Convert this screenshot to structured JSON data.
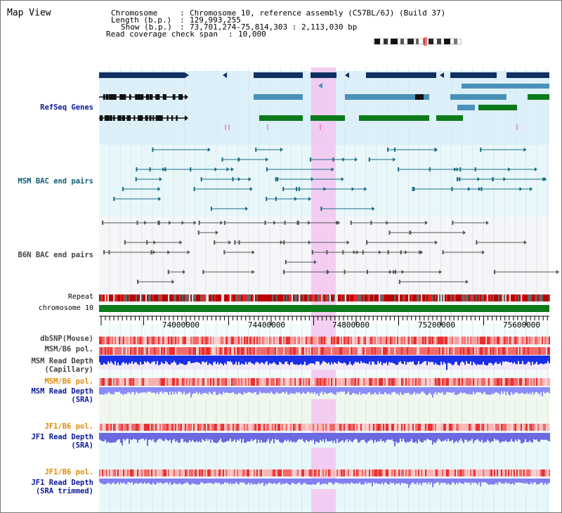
{
  "title": "Map View",
  "header": {
    "chromosome_label": "Chromosome",
    "chromosome_value": "Chromosome 10, reference assembly (C57BL/6J) (Build 37)",
    "length_label": "Length (b.p.)",
    "length_value": "129,993,255",
    "show_label": "Show (b.p.)",
    "show_value": "73,701,274-75,814,303 : 2,113,030 bp",
    "coverage_label": "Read coverage check span",
    "coverage_value": "10,000",
    "sep": ":"
  },
  "tracks": {
    "refseq": "RefSeq Genes",
    "msm_bac": "MSM BAC end pairs",
    "b6n_bac": "B6N BAC end pairs",
    "repeat": "Repeat",
    "chromosome": "chromosome 10",
    "dbsnp": "dbSNP(Mouse)",
    "msm_b6_pol_1": "MSM/B6 pol.",
    "msm_depth_cap_1": "MSM Read Depth",
    "msm_depth_cap_2": "(Capillary)",
    "msm_b6_pol_2": "MSM/B6 pol.",
    "msm_depth_sra_1": "MSM Read Depth",
    "msm_depth_sra_2": "(SRA)",
    "jf1_b6_pol_1": "JF1/B6 pol.",
    "jf1_depth_sra_1": "JF1 Read Depth",
    "jf1_depth_sra_2": "(SRA)",
    "jf1_b6_pol_2": "JF1/B6 pol.",
    "jf1_depth_trim_1": "JF1 Read Depth",
    "jf1_depth_trim_2": "(SRA trimmed)"
  },
  "axis": {
    "ticks": [
      "74000000",
      "74400000",
      "74800000",
      "75200000",
      "75600000"
    ],
    "tick_values": [
      74000000,
      74400000,
      74800000,
      75200000,
      75600000
    ],
    "range": [
      73701274,
      75814303
    ]
  },
  "colors": {
    "refseq_bg": "#dcf0fa",
    "msm_bg": "#e8f8fa",
    "b6n_bg": "#f4f6f8",
    "gene_dark": "#0f3060",
    "gene_mid": "#4a90b8",
    "gene_green": "#0a7a1a",
    "chrom_bar": "#0a7a1a",
    "highlight": "#f3c6f0",
    "depth_dark": "#1a2ee8",
    "depth_light": "#8a8cf8"
  }
}
